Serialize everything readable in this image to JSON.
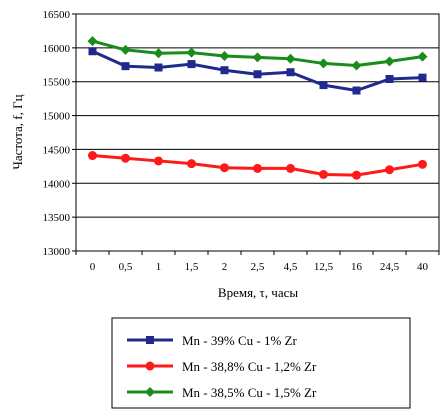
{
  "chart_data": {
    "type": "line",
    "xlabel": "Время, τ, часы",
    "ylabel": "Частота, f, Гц",
    "categories": [
      "0",
      "0,5",
      "1",
      "1,5",
      "2",
      "2,5",
      "4,5",
      "12,5",
      "16",
      "24,5",
      "40"
    ],
    "ylim": [
      13000,
      16500
    ],
    "yticks": [
      "13000",
      "13500",
      "14000",
      "14500",
      "15000",
      "15500",
      "16000",
      "16500"
    ],
    "grid": "horizontal",
    "legend_position": "bottom",
    "series": [
      {
        "name": "Mn - 39% Cu - 1% Zr",
        "color": "#1f2a8c",
        "marker": "square",
        "values": [
          15950,
          15730,
          15710,
          15760,
          15670,
          15610,
          15640,
          15450,
          15370,
          15540,
          15560
        ]
      },
      {
        "name": "Mn - 38,8% Cu - 1,2% Zr",
        "color": "#ff1a1a",
        "marker": "circle",
        "values": [
          14410,
          14370,
          14330,
          14290,
          14230,
          14220,
          14220,
          14130,
          14120,
          14200,
          14280
        ]
      },
      {
        "name": "Mn - 38,5% Cu - 1,5% Zr",
        "color": "#1a8c1a",
        "marker": "diamond",
        "values": [
          16100,
          15970,
          15920,
          15930,
          15880,
          15860,
          15840,
          15770,
          15740,
          15800,
          15870
        ]
      }
    ]
  }
}
